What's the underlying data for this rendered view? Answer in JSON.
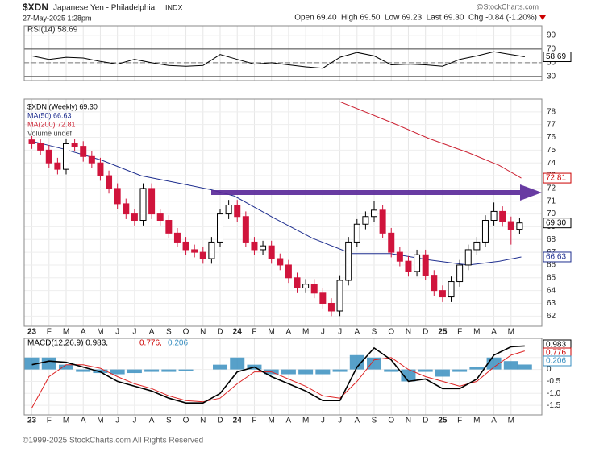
{
  "header": {
    "symbol": "$XDN",
    "name": "Japanese Yen - Philadelphia",
    "exchange": "INDX",
    "date": "27-May-2025 1:28pm",
    "brand": "@StockCharts.com",
    "quote": "Open 69.40  High 69.50  Low 69.23  Last 69.30  Chg -0.84 (-1.20%)"
  },
  "footer": "©1999-2025 StockCharts.com All Rights Reserved",
  "chart_data": [
    {
      "type": "line",
      "legend": "RSI(14) 58.69",
      "xlim": [
        -0.45,
        29.8
      ],
      "ylim": [
        24,
        104
      ],
      "yticks": [
        90,
        70,
        50,
        30
      ],
      "ref_lines": [
        70,
        30
      ],
      "dashed_line": 50,
      "tag": {
        "value": 58.69,
        "label": "58.69"
      },
      "series": [
        {
          "name": "RSI(14)",
          "color": "#000000",
          "x": [
            0,
            1,
            2,
            3,
            4,
            5,
            6,
            7,
            8,
            9,
            10,
            11,
            12,
            13,
            14,
            15,
            16,
            17,
            18,
            19,
            20,
            21,
            22,
            23,
            24,
            25,
            26,
            27,
            28,
            28.8
          ],
          "values": [
            60,
            55,
            58,
            57,
            52,
            48,
            55,
            50,
            46,
            45,
            46,
            62,
            55,
            48,
            50,
            47,
            44,
            42,
            58,
            65,
            60,
            47,
            48,
            47,
            45,
            55,
            60,
            66,
            62,
            58.69
          ]
        }
      ]
    },
    {
      "type": "candlestick",
      "legend": [
        "$XDN (Weekly) 69.30",
        "MA(50) 66.63",
        "MA(200) 72.81",
        "Volume undef"
      ],
      "xlim": [
        -0.45,
        29.8
      ],
      "ylim": [
        61.2,
        79
      ],
      "yticks": [
        62,
        63,
        64,
        65,
        66,
        67,
        68,
        69,
        70,
        71,
        72,
        73,
        74,
        75,
        76,
        77,
        78
      ],
      "xticks": [
        {
          "value": 0,
          "label": "23"
        },
        {
          "value": 1,
          "label": "F"
        },
        {
          "value": 2,
          "label": "M"
        },
        {
          "value": 3,
          "label": "A"
        },
        {
          "value": 4,
          "label": "M"
        },
        {
          "value": 5,
          "label": "J"
        },
        {
          "value": 6,
          "label": "J"
        },
        {
          "value": 7,
          "label": "A"
        },
        {
          "value": 8,
          "label": "S"
        },
        {
          "value": 9,
          "label": "O"
        },
        {
          "value": 10,
          "label": "N"
        },
        {
          "value": 11,
          "label": "D"
        },
        {
          "value": 12,
          "label": "24"
        },
        {
          "value": 13,
          "label": "F"
        },
        {
          "value": 14,
          "label": "M"
        },
        {
          "value": 15,
          "label": "A"
        },
        {
          "value": 16,
          "label": "M"
        },
        {
          "value": 17,
          "label": "J"
        },
        {
          "value": 18,
          "label": "J"
        },
        {
          "value": 19,
          "label": "A"
        },
        {
          "value": 20,
          "label": "S"
        },
        {
          "value": 21,
          "label": "O"
        },
        {
          "value": 22,
          "label": "N"
        },
        {
          "value": 23,
          "label": "D"
        },
        {
          "value": 24,
          "label": "25"
        },
        {
          "value": 25,
          "label": "F"
        },
        {
          "value": 26,
          "label": "M"
        },
        {
          "value": 27,
          "label": "A"
        },
        {
          "value": 28,
          "label": "M"
        }
      ],
      "x": [
        0,
        0.5,
        1,
        1.5,
        2,
        2.5,
        3,
        3.5,
        4,
        4.5,
        5,
        5.5,
        6,
        6.5,
        7,
        7.5,
        8,
        8.5,
        9,
        9.5,
        10,
        10.5,
        11,
        11.5,
        12,
        12.5,
        13,
        13.5,
        14,
        14.5,
        15,
        15.5,
        16,
        16.5,
        17,
        17.5,
        18,
        18.5,
        19,
        19.5,
        20,
        20.5,
        21,
        21.5,
        22,
        22.5,
        23,
        23.5,
        24,
        24.5,
        25,
        25.5,
        26,
        26.5,
        27,
        27.5,
        28,
        28.5
      ],
      "ohlc": [
        [
          75.8,
          76.1,
          75.1,
          75.5
        ],
        [
          75.5,
          75.9,
          74.6,
          75
        ],
        [
          75,
          75.4,
          73.6,
          74
        ],
        [
          74,
          74.4,
          73.1,
          73.5
        ],
        [
          73.5,
          75.9,
          73.1,
          75.5
        ],
        [
          75.5,
          75.9,
          74.9,
          75.3
        ],
        [
          75.3,
          75.7,
          74.1,
          74.5
        ],
        [
          74.5,
          74.9,
          73.6,
          74
        ],
        [
          74,
          74.4,
          72.6,
          73
        ],
        [
          73,
          73.4,
          71.6,
          72
        ],
        [
          72,
          72.4,
          70.4,
          70.8
        ],
        [
          70.8,
          71.2,
          69.6,
          70
        ],
        [
          70,
          70.4,
          69.1,
          69.5
        ],
        [
          69.5,
          72.4,
          69.1,
          72
        ],
        [
          72,
          72.4,
          69.6,
          70
        ],
        [
          70,
          70.4,
          69.1,
          69.5
        ],
        [
          69.5,
          69.9,
          68.1,
          68.5
        ],
        [
          68.5,
          68.9,
          67.4,
          67.8
        ],
        [
          67.8,
          68.2,
          66.8,
          67.2
        ],
        [
          67.2,
          67.6,
          66.6,
          67
        ],
        [
          67,
          67.4,
          66.1,
          66.5
        ],
        [
          66.5,
          68.2,
          66.1,
          67.8
        ],
        [
          67.8,
          70.4,
          67.4,
          70
        ],
        [
          70,
          71.1,
          69.6,
          70.7
        ],
        [
          70.7,
          71.1,
          69.4,
          69.8
        ],
        [
          69.8,
          70.2,
          67.4,
          67.8
        ],
        [
          67.8,
          68.2,
          66.8,
          67.2
        ],
        [
          67.2,
          67.9,
          66.8,
          67.5
        ],
        [
          67.5,
          67.9,
          66.1,
          66.5
        ],
        [
          66.5,
          66.9,
          65.6,
          66
        ],
        [
          66,
          66.4,
          64.6,
          65
        ],
        [
          65,
          65.4,
          63.8,
          64.2
        ],
        [
          64.2,
          64.9,
          63.8,
          64.5
        ],
        [
          64.5,
          64.9,
          63.4,
          63.8
        ],
        [
          63.8,
          64.2,
          62.6,
          63
        ],
        [
          63,
          63.4,
          62,
          62.4
        ],
        [
          62.4,
          65.2,
          62,
          64.8
        ],
        [
          64.8,
          68.2,
          64.4,
          67.8
        ],
        [
          67.8,
          69.6,
          67.4,
          69.2
        ],
        [
          69.2,
          70.2,
          68.8,
          69.8
        ],
        [
          69.8,
          71,
          69.4,
          70.3
        ],
        [
          70.3,
          70.7,
          68.1,
          68.5
        ],
        [
          68.5,
          68.9,
          66.6,
          67
        ],
        [
          67,
          67.4,
          65.9,
          66.3
        ],
        [
          66.3,
          66.7,
          65.1,
          65.5
        ],
        [
          65.5,
          67.2,
          65.1,
          66.8
        ],
        [
          66.8,
          67.2,
          64.8,
          65.2
        ],
        [
          65.2,
          65.6,
          63.6,
          64
        ],
        [
          64,
          64.4,
          63.1,
          63.5
        ],
        [
          63.5,
          65.1,
          63.1,
          64.7
        ],
        [
          64.7,
          66.4,
          64.3,
          66
        ],
        [
          66,
          67.6,
          65.6,
          67.2
        ],
        [
          67.2,
          68.2,
          66.8,
          67.8
        ],
        [
          67.8,
          69.9,
          67.4,
          69.5
        ],
        [
          69.5,
          70.9,
          69.1,
          70.2
        ],
        [
          70.2,
          70.6,
          69,
          69.4
        ],
        [
          69.4,
          69.8,
          67.6,
          68.8
        ],
        [
          68.8,
          69.7,
          68.4,
          69.3
        ]
      ],
      "tags": [
        {
          "value": 69.3,
          "label": "69.30",
          "color": "#000000"
        },
        {
          "value": 72.81,
          "label": "72.81",
          "color": "#cc0000"
        },
        {
          "value": 66.63,
          "label": "66.63",
          "color": "#1f2f8f"
        }
      ],
      "series": [
        {
          "name": "MA(50)",
          "color": "#1f2f8f",
          "x": [
            0,
            1.82,
            4.1,
            6.38,
            8.65,
            10.47,
            11.84,
            14.12,
            16.39,
            18.67,
            20.95,
            23.22,
            25.5,
            27.32,
            28.6
          ],
          "values": [
            75.7,
            75.1,
            74.2,
            73,
            72.4,
            71.9,
            71.4,
            69.7,
            68.1,
            66.9,
            66.9,
            66.4,
            66,
            66.3,
            66.63
          ]
        },
        {
          "name": "MA(200)",
          "color": "#cc2233",
          "x": [
            17.99,
            20.95,
            23.22,
            25.5,
            27.32,
            28.6
          ],
          "values": [
            78.8,
            77.2,
            75.9,
            74.8,
            73.8,
            72.81
          ]
        }
      ]
    },
    {
      "type": "macd",
      "legend": [
        "MACD(12,26,9) 0.983,",
        "0.776,",
        "0.206"
      ],
      "xlim": [
        -0.45,
        29.8
      ],
      "ylim": [
        -1.9,
        1.3
      ],
      "yticks": [
        0.5,
        0,
        -0.5,
        {
          "value": -1,
          "label": "-1.0"
        },
        -1.5
      ],
      "tags": [
        {
          "value": 0.983,
          "label": "0.983",
          "color": "#000000"
        },
        {
          "value": 0.776,
          "label": "0.776",
          "color": "#cc0000"
        },
        {
          "value": 0.206,
          "label": "0.206",
          "color": "#3a8fc0"
        }
      ],
      "x": [
        0,
        1,
        2,
        3,
        4,
        5,
        6,
        7,
        8,
        9,
        10,
        11,
        12,
        13,
        14,
        15,
        16,
        17,
        18,
        19,
        20,
        21,
        22,
        23,
        24,
        25,
        26,
        27,
        28,
        28.8
      ],
      "series": [
        {
          "name": "MACD",
          "color": "#000000",
          "values": [
            0.2,
            0.35,
            0.3,
            0.1,
            -0.1,
            -0.5,
            -0.7,
            -0.9,
            -1.2,
            -1.4,
            -1.4,
            -1,
            -0.1,
            0.1,
            -0.3,
            -0.6,
            -0.9,
            -1.3,
            -1.3,
            0.1,
            0.9,
            0.4,
            -0.5,
            -0.4,
            -0.8,
            -0.8,
            -0.4,
            0.6,
            0.95,
            0.983
          ]
        },
        {
          "name": "Signal",
          "color": "#dd2222",
          "values": [
            -1.6,
            -0.3,
            0.2,
            0.2,
            0.05,
            -0.3,
            -0.6,
            -0.8,
            -1.1,
            -1.3,
            -1.35,
            -1.2,
            -0.6,
            -0.1,
            -0.1,
            -0.4,
            -0.7,
            -1.1,
            -1.2,
            -0.5,
            0.4,
            0.5,
            0,
            -0.3,
            -0.5,
            -0.7,
            -0.5,
            0.1,
            0.6,
            0.776
          ]
        },
        {
          "name": "Histogram",
          "color": "#3a8fc0",
          "values": [
            0.5,
            0.5,
            0.2,
            -0.1,
            -0.15,
            -0.2,
            -0.15,
            -0.1,
            -0.1,
            -0.05,
            0,
            0.2,
            0.5,
            0.2,
            -0.2,
            -0.2,
            -0.2,
            -0.2,
            -0.1,
            0.6,
            0.5,
            -0.1,
            -0.5,
            -0.1,
            -0.3,
            -0.1,
            0.1,
            0.5,
            0.35,
            0.206
          ]
        }
      ]
    }
  ]
}
